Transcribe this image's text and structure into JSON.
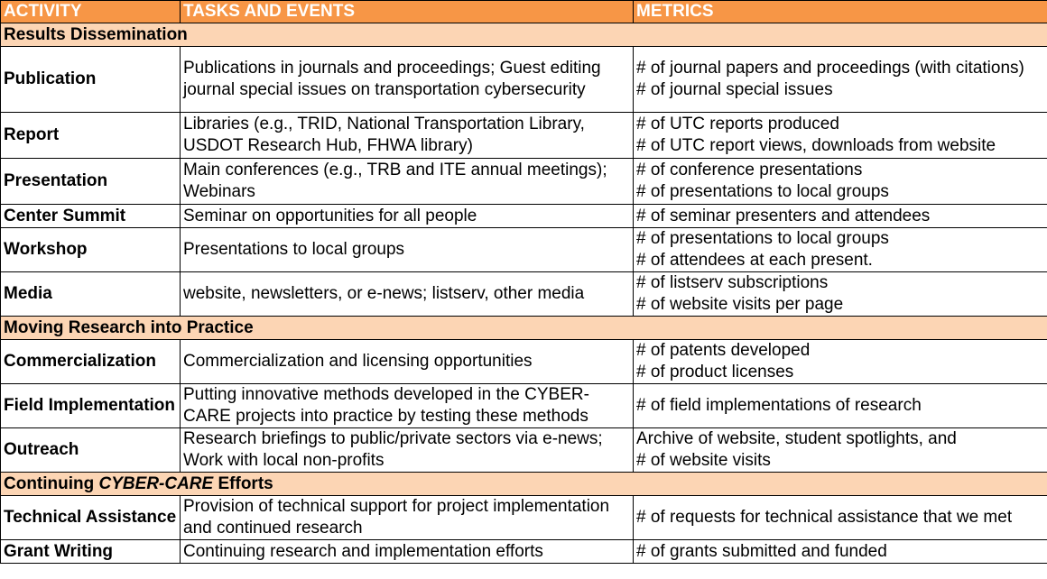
{
  "colors": {
    "header_bg": "#f79646",
    "section_bg": "#fcd5b4",
    "header_text": "#ffffff"
  },
  "header": {
    "activity": "ACTIVITY",
    "tasks": "TASKS AND EVENTS",
    "metrics": "METRICS"
  },
  "sections": [
    {
      "title": "Results Dissemination",
      "rows": [
        {
          "activity": "Publication",
          "tasks": "Publications in journals and proceedings; Guest editing journal special issues on transportation cybersecurity",
          "metrics": [
            "# of journal papers and proceedings (with citations)",
            "# of journal special issues"
          ]
        },
        {
          "activity": "Report",
          "tasks": "Libraries (e.g., TRID, National Transportation Library, USDOT Research Hub, FHWA library)",
          "metrics": [
            "# of UTC reports produced",
            "# of UTC report views, downloads from website"
          ]
        },
        {
          "activity": "Presentation",
          "tasks": "Main conferences (e.g., TRB and ITE annual meetings); Webinars",
          "metrics": [
            "# of conference presentations",
            "# of presentations to local groups"
          ]
        },
        {
          "activity": "Center Summit",
          "tasks": "Seminar on opportunities for all people",
          "metrics": [
            "# of seminar presenters and attendees"
          ]
        },
        {
          "activity": "Workshop",
          "tasks": "Presentations to local groups",
          "metrics": [
            "# of presentations to local groups",
            "# of attendees at each present."
          ]
        },
        {
          "activity": "Media",
          "tasks": "website, newsletters, or e-news; listserv, other media",
          "metrics": [
            "# of listserv subscriptions",
            "# of website visits per page"
          ]
        }
      ]
    },
    {
      "title": "Moving Research into Practice",
      "rows": [
        {
          "activity": "Commercialization",
          "tasks": "Commercialization and licensing opportunities",
          "metrics": [
            "# of patents developed",
            "# of product licenses"
          ]
        },
        {
          "activity": "Field Implementation",
          "tasks": "Putting innovative methods developed in the CYBER-CARE projects into practice by testing these methods",
          "metrics": [
            "# of field implementations of research"
          ]
        },
        {
          "activity": "Outreach",
          "tasks": "Research briefings to public/private sectors via e-news; Work with local non-profits",
          "metrics": [
            "Archive of website, student spotlights, and",
            "# of website visits"
          ]
        }
      ]
    },
    {
      "title_prefix": "Continuing ",
      "title_emph": "CYBER-CARE",
      "title_suffix": " Efforts",
      "rows": [
        {
          "activity": "Technical Assistance",
          "tasks": "Provision of technical support for project implementation and continued research",
          "metrics": [
            "# of requests for technical assistance that we met"
          ]
        },
        {
          "activity": "Grant Writing",
          "tasks": "Continuing research and implementation efforts",
          "metrics": [
            "# of grants submitted and funded"
          ]
        }
      ]
    }
  ]
}
